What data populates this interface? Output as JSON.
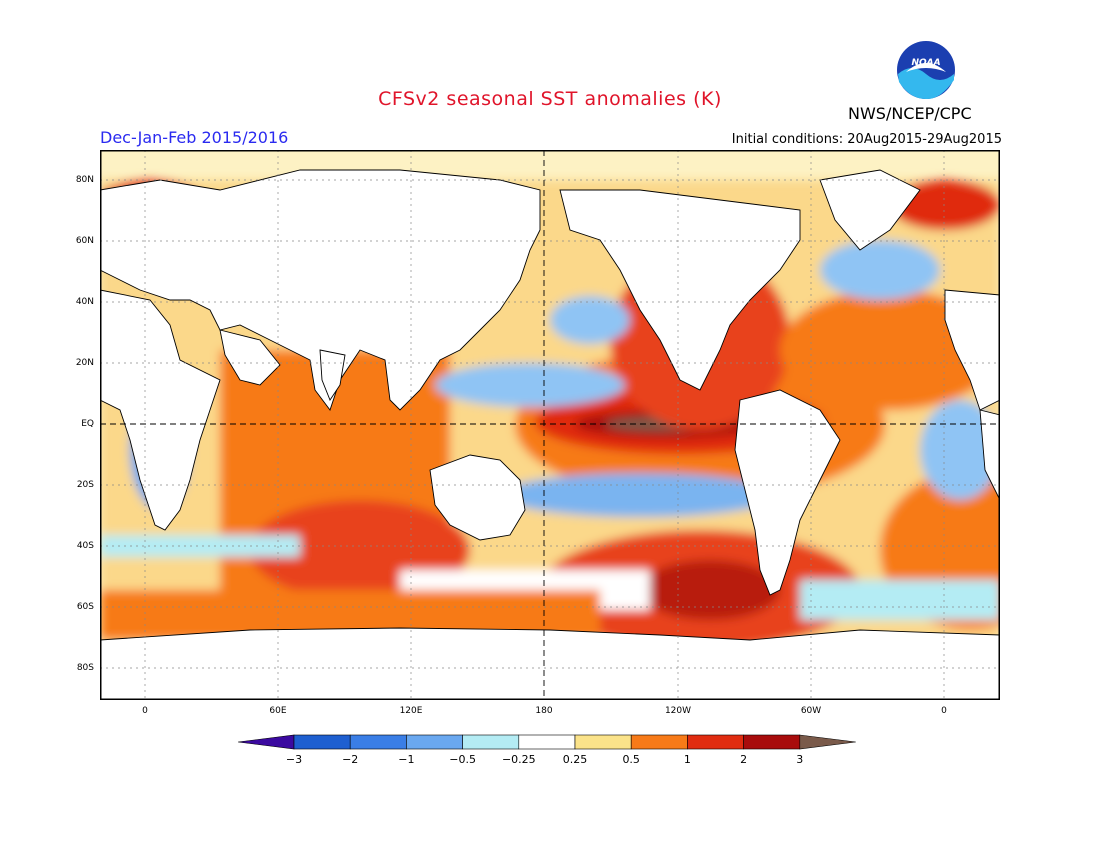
{
  "header": {
    "title": "CFSv2 seasonal SST anomalies (K)",
    "season": "Dec-Jan-Feb 2015/2016",
    "initial_conditions": "Initial conditions: 20Aug2015-29Aug2015",
    "agency": "NWS/NCEP/CPC",
    "logo_text": "NOAA"
  },
  "map": {
    "lat_labels": [
      "80N",
      "60N",
      "40N",
      "20N",
      "EQ",
      "20S",
      "40S",
      "60S",
      "80S"
    ],
    "lon_labels": [
      "0",
      "60E",
      "120E",
      "180",
      "120W",
      "60W",
      "0"
    ],
    "land_color": "#ffffff",
    "grid": "dashed"
  },
  "legend": {
    "labels": [
      "-3",
      "-2",
      "-1",
      "-0.5",
      "-0.25",
      "0.25",
      "0.5",
      "1",
      "2",
      "3"
    ],
    "colors": [
      "#3b0aa0",
      "#1e5fd0",
      "#3a7ee6",
      "#6aa8f0",
      "#b4ecf4",
      "#ffffff",
      "#fbe38a",
      "#f77a18",
      "#e02c10",
      "#a80c0c",
      "#7a5a4a"
    ]
  }
}
